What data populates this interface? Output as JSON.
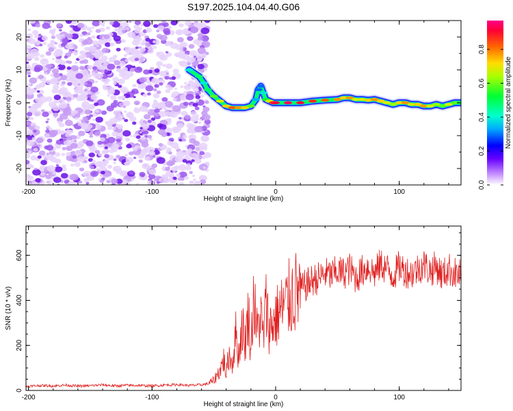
{
  "figure_title": "S197.2025.104.04.40.G06",
  "colorbar": {
    "label": "Normalized spectral amplitude",
    "range": [
      0,
      0.97
    ],
    "ticks": [
      0.0,
      0.2,
      0.4,
      0.6,
      0.8
    ],
    "tick_labels": [
      "0.0",
      "0.2",
      "0.4",
      "0.6",
      "0.8"
    ],
    "palette": [
      "#ffffff",
      "#9933ff",
      "#0000ff",
      "#00ccff",
      "#00ff66",
      "#ccff00",
      "#ffcc00",
      "#ff3300",
      "#ff0066"
    ]
  },
  "colors": {
    "snr_line": "#e02020",
    "axis": "#000000",
    "frame": "#000000"
  },
  "chart_data": [
    {
      "type": "heatmap",
      "title": "",
      "xlabel": "Height of straight line (km)",
      "ylabel": "Frequency (Hz)",
      "xlim": [
        -202,
        150
      ],
      "ylim": [
        -25,
        25
      ],
      "xticks": [
        -200,
        -100,
        0,
        100
      ],
      "xtick_labels": [
        "-200",
        "-100",
        "0",
        "100"
      ],
      "yticks": [
        -20,
        -10,
        0,
        10,
        20
      ],
      "ytick_labels": [
        "-20",
        "-10",
        "0",
        "10",
        "20"
      ],
      "noise_region_x": [
        -202,
        -55
      ],
      "signal_ridge": {
        "x": [
          -70,
          -62,
          -58,
          -55,
          -50,
          -45,
          -40,
          -35,
          -30,
          -25,
          -20,
          -16,
          -14,
          -12,
          -10,
          -8,
          -5,
          -2,
          0,
          10,
          20,
          30,
          40,
          50,
          55,
          60,
          65,
          70,
          75,
          80,
          85,
          90,
          95,
          100,
          105,
          110,
          115,
          120,
          125,
          130,
          135,
          140,
          145,
          150
        ],
        "frequency": [
          10,
          8,
          6,
          4,
          2,
          0.5,
          -1,
          -1.5,
          -1.5,
          -1.5,
          -1,
          1,
          4,
          5,
          3,
          1,
          0.5,
          0,
          0,
          0,
          0,
          0.5,
          0.8,
          1,
          1.5,
          1.5,
          1,
          1,
          0.8,
          1,
          0.5,
          0,
          -0.5,
          0,
          0,
          -0.5,
          -0.5,
          -1,
          -1,
          -0.5,
          -1,
          -0.5,
          0,
          0
        ],
        "amplitude": [
          0.4,
          0.5,
          0.4,
          0.5,
          0.6,
          0.7,
          0.75,
          0.85,
          0.8,
          0.75,
          0.6,
          0.35,
          0.3,
          0.3,
          0.4,
          0.55,
          0.7,
          0.9,
          0.95,
          0.97,
          0.95,
          0.9,
          0.85,
          0.8,
          0.75,
          0.8,
          0.7,
          0.7,
          0.75,
          0.8,
          0.75,
          0.7,
          0.65,
          0.75,
          0.8,
          0.7,
          0.75,
          0.8,
          0.7,
          0.65,
          0.6,
          0.7,
          0.6,
          0.55
        ]
      }
    },
    {
      "type": "line",
      "title": "",
      "xlabel": "Height of straight line (km)",
      "ylabel": "SNR (10 * v/v)",
      "xlim": [
        -202,
        150
      ],
      "ylim": [
        0,
        730
      ],
      "xticks": [
        -200,
        -100,
        0,
        100
      ],
      "xtick_labels": [
        "-200",
        "-100",
        "0",
        "100"
      ],
      "yticks": [
        0,
        200,
        400,
        600
      ],
      "ytick_labels": [
        "0",
        "200",
        "400",
        "600"
      ],
      "series": [
        {
          "name": "SNR",
          "x": [
            -202,
            -190,
            -180,
            -170,
            -160,
            -150,
            -140,
            -130,
            -120,
            -110,
            -100,
            -90,
            -80,
            -70,
            -60,
            -55,
            -50,
            -45,
            -42,
            -40,
            -38,
            -35,
            -32,
            -30,
            -27,
            -25,
            -22,
            -20,
            -18,
            -15,
            -12,
            -10,
            -8,
            -5,
            -2,
            0,
            3,
            5,
            8,
            10,
            13,
            15,
            18,
            20,
            23,
            25,
            28,
            30,
            35,
            40,
            45,
            50,
            55,
            60,
            65,
            70,
            75,
            80,
            85,
            90,
            95,
            100,
            105,
            110,
            115,
            120,
            125,
            130,
            135,
            140,
            145,
            150
          ],
          "values": [
            18,
            22,
            20,
            24,
            19,
            21,
            25,
            20,
            23,
            22,
            20,
            24,
            26,
            22,
            25,
            30,
            45,
            90,
            140,
            70,
            160,
            120,
            260,
            150,
            300,
            200,
            350,
            180,
            420,
            260,
            330,
            230,
            380,
            280,
            300,
            320,
            350,
            360,
            380,
            400,
            420,
            430,
            440,
            450,
            460,
            470,
            480,
            490,
            500,
            520,
            510,
            530,
            520,
            540,
            500,
            530,
            550,
            520,
            560,
            540,
            510,
            550,
            530,
            520,
            540,
            560,
            530,
            550,
            510,
            540,
            520,
            510
          ]
        }
      ]
    }
  ]
}
